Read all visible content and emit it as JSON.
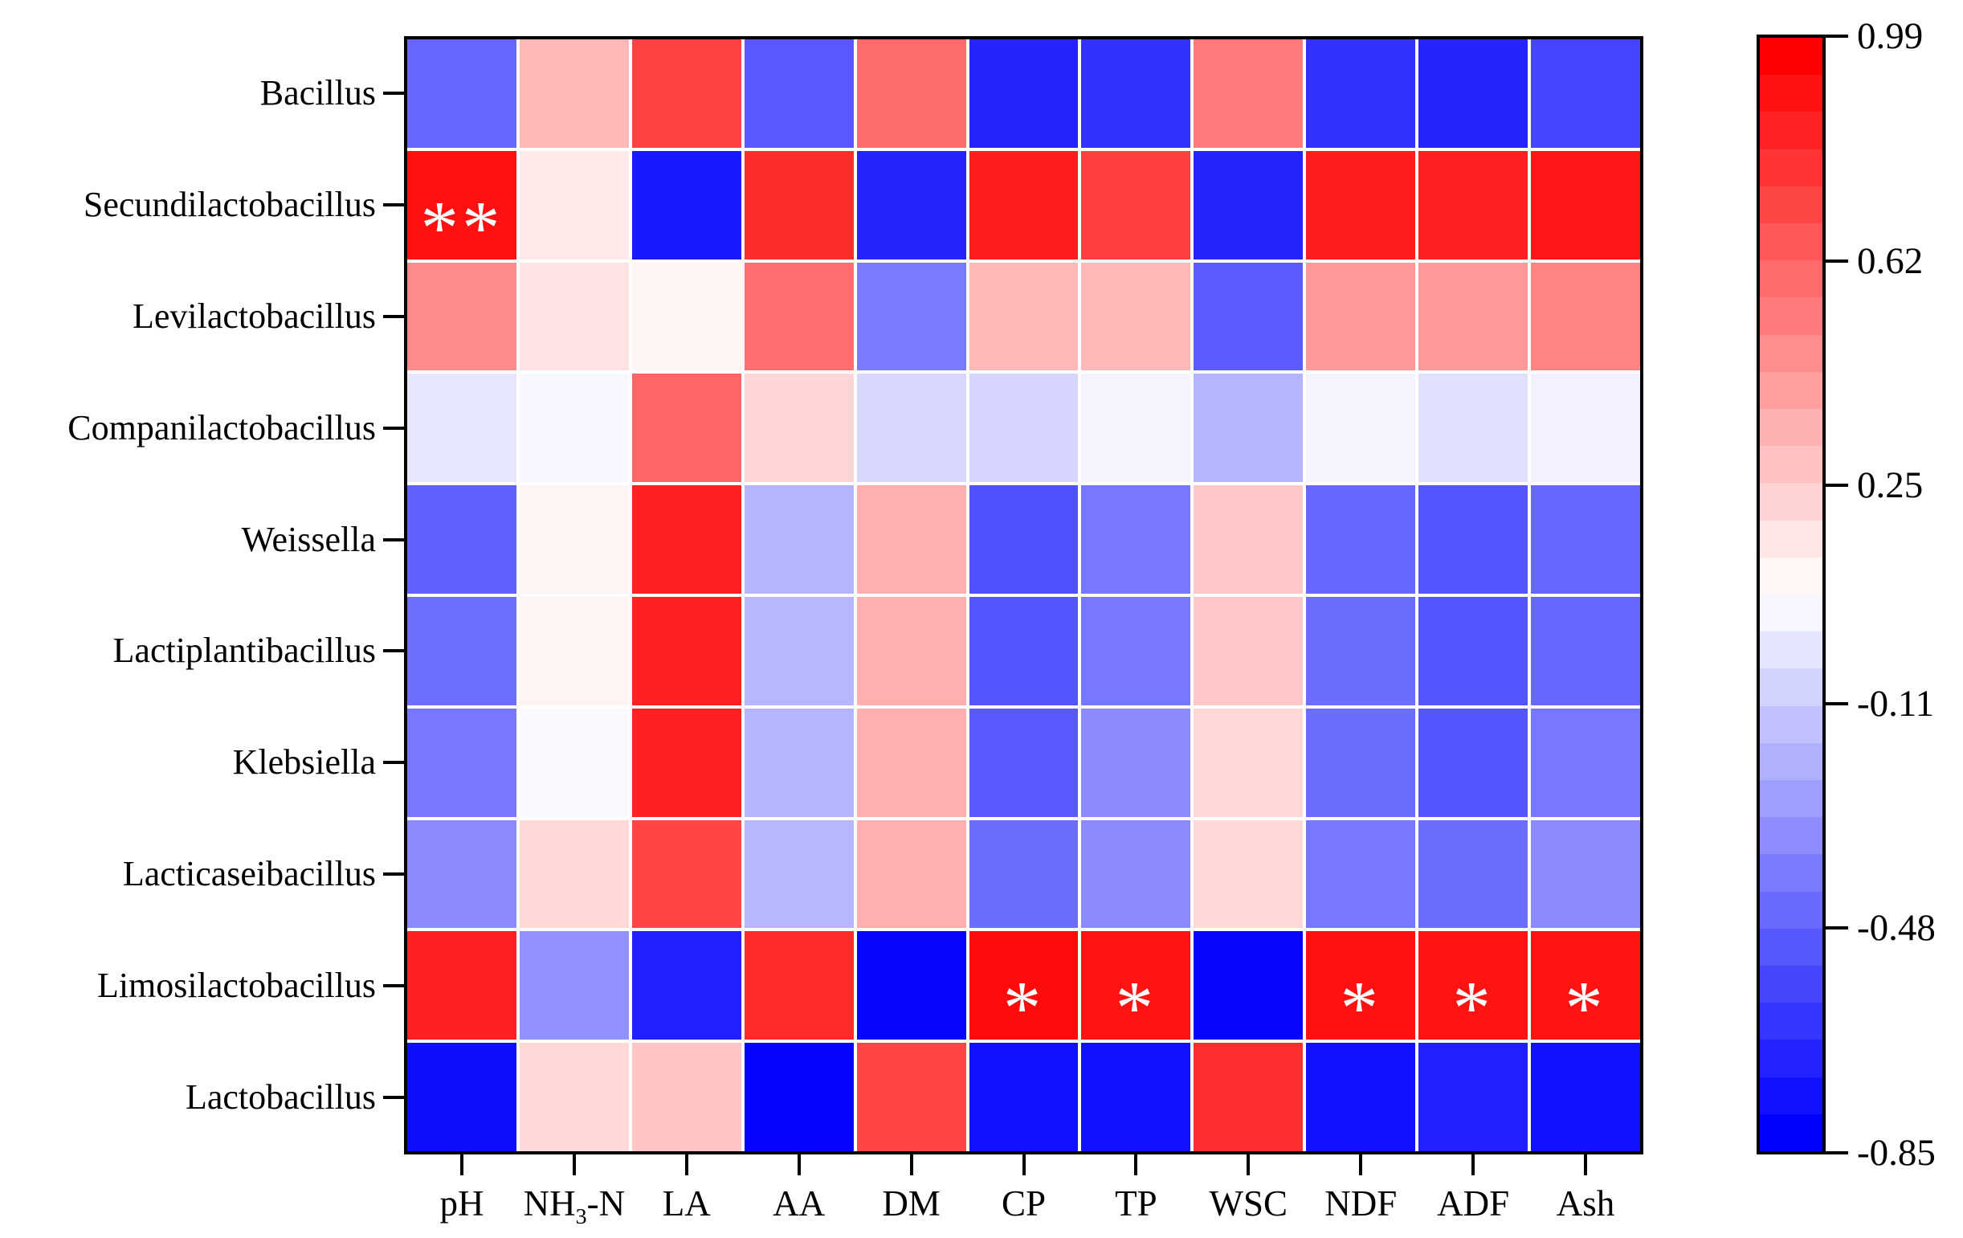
{
  "figure": {
    "description": "Correlation heatmap between bacterial genera and silage fermentation / chemical parameters"
  },
  "colors": {
    "background": "#ffffff",
    "plot_border": "#000000",
    "gridline": "#ffffff",
    "tick_color": "#000000",
    "label_color": "#000000",
    "positive_max_color": "#ff0000",
    "negative_min_color": "#0000ff",
    "midpoint_color": "#ffffff",
    "significance_mark_color": "#ffffff"
  },
  "chart_data": {
    "type": "heatmap",
    "rows": [
      "Bacillus",
      "Secundilactobacillus",
      "Levilactobacillus",
      "Companilactobacillus",
      "Weissella",
      "Lactiplantibacillus",
      "Klebsiella",
      "Lacticaseibacillus",
      "Limosilactobacillus",
      "Lactobacillus"
    ],
    "columns": [
      "pH",
      "NH3-N",
      "LA",
      "AA",
      "DM",
      "CP",
      "TP",
      "WSC",
      "NDF",
      "ADF",
      "Ash"
    ],
    "values": [
      [
        -0.48,
        0.33,
        0.75,
        -0.53,
        0.6,
        -0.72,
        -0.67,
        0.55,
        -0.67,
        -0.72,
        -0.6
      ],
      [
        0.93,
        0.15,
        -0.76,
        0.83,
        -0.72,
        0.88,
        0.76,
        -0.72,
        0.89,
        0.87,
        0.91
      ],
      [
        0.49,
        0.17,
        0.11,
        0.59,
        -0.41,
        0.33,
        0.33,
        -0.52,
        0.44,
        0.44,
        0.51
      ],
      [
        -0.02,
        0.04,
        0.62,
        0.22,
        -0.07,
        -0.08,
        0.03,
        -0.2,
        0.03,
        -0.04,
        0.02
      ],
      [
        -0.5,
        0.11,
        0.87,
        -0.2,
        0.36,
        -0.56,
        -0.42,
        0.27,
        -0.48,
        -0.54,
        -0.48
      ],
      [
        -0.45,
        0.11,
        0.87,
        -0.19,
        0.36,
        -0.54,
        -0.42,
        0.27,
        -0.46,
        -0.54,
        -0.48
      ],
      [
        -0.42,
        0.05,
        0.87,
        -0.2,
        0.36,
        -0.53,
        -0.35,
        0.21,
        -0.46,
        -0.54,
        -0.42
      ],
      [
        -0.35,
        0.21,
        0.74,
        -0.19,
        0.36,
        -0.46,
        -0.35,
        0.21,
        -0.42,
        -0.46,
        -0.35
      ],
      [
        0.87,
        -0.33,
        -0.73,
        0.84,
        -0.83,
        0.95,
        0.92,
        -0.83,
        0.93,
        0.92,
        0.92
      ],
      [
        -0.8,
        0.21,
        0.28,
        -0.84,
        0.74,
        -0.79,
        -0.79,
        0.82,
        -0.79,
        -0.73,
        -0.79
      ]
    ],
    "significant_cells": [
      {
        "row": "Secundilactobacillus",
        "col": "pH",
        "mark": "**"
      },
      {
        "row": "Limosilactobacillus",
        "col": "CP",
        "mark": "*"
      },
      {
        "row": "Limosilactobacillus",
        "col": "TP",
        "mark": "*"
      },
      {
        "row": "Limosilactobacillus",
        "col": "NDF",
        "mark": "*"
      },
      {
        "row": "Limosilactobacillus",
        "col": "ADF",
        "mark": "*"
      },
      {
        "row": "Limosilactobacillus",
        "col": "Ash",
        "mark": "*"
      }
    ],
    "colorbar": {
      "tick_labels": [
        "0.99",
        "0.62",
        "0.25",
        "-0.11",
        "-0.48",
        "-0.85"
      ],
      "tick_values": [
        0.99,
        0.62,
        0.25,
        -0.11,
        -0.48,
        -0.85
      ],
      "max": 0.99,
      "min": -0.85,
      "white_point": 0.07,
      "segments": 30,
      "position": "right"
    },
    "grid": true,
    "legend_position": "right-colorbar"
  }
}
